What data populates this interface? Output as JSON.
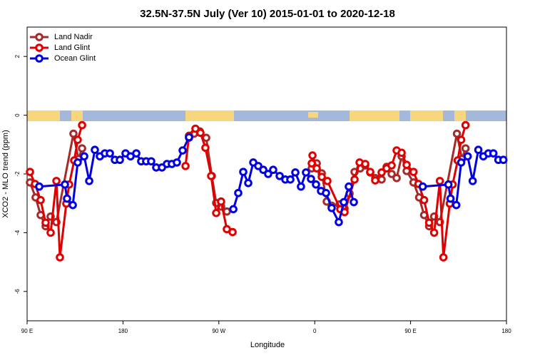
{
  "chart_data": {
    "type": "line",
    "title": "32.5N-37.5N July (Ver 10)   2015-01-01 to 2020-12-18",
    "xlabel": "Longitude",
    "ylabel": "XCO2 - MLO trend (ppm)",
    "xlim": [
      90,
      540
    ],
    "ylim": [
      -7,
      3
    ],
    "xticks": [
      {
        "value": 90,
        "label": "90 E"
      },
      {
        "value": 180,
        "label": "180"
      },
      {
        "value": 270,
        "label": "90 W"
      },
      {
        "value": 360,
        "label": "0"
      },
      {
        "value": 450,
        "label": "90 E"
      },
      {
        "value": 540,
        "label": "180"
      }
    ],
    "yticks": [
      -6,
      -4,
      -2,
      0,
      2
    ],
    "legend": "top-left",
    "series": [
      {
        "name": "Land Nadir",
        "color": "#a52a2a",
        "x": [
          92.7,
          98.0,
          102.7,
          107.4,
          112.1,
          117.5,
          133.5,
          138.2,
          141.6,
          null,
          242.0,
          246.7,
          252.1,
          258.1,
          263.4,
          267.5,
          272.1,
          277.5,
          null,
          357.2,
          361.9,
          366.6,
          371.3,
          375.9,
          383.3,
          388.0,
          392.7,
          397.4,
          402.7,
          407.4,
          412.1,
          416.8,
          422.8,
          427.5,
          432.2,
          436.9,
          441.6,
          446.3,
          452.7,
          458.0,
          462.7,
          467.4,
          472.1,
          477.5,
          493.5,
          498.2,
          501.6
        ],
        "values": [
          -2.29,
          -2.8,
          -3.4,
          -3.78,
          -3.45,
          -3.64,
          -0.63,
          -1.49,
          -1.13,
          null,
          -0.77,
          -0.63,
          -0.55,
          -0.77,
          -2.07,
          -2.99,
          -3.11,
          -3.28,
          null,
          -1.81,
          -1.64,
          -1.98,
          -2.94,
          -3.08,
          -3.04,
          -3.18,
          -2.67,
          -1.93,
          -1.81,
          -1.71,
          -1.95,
          -2.14,
          -2.19,
          -1.76,
          -2.0,
          -2.14,
          -1.4,
          -1.9,
          -2.29,
          -2.8,
          -3.4,
          -3.78,
          -3.45,
          -3.64,
          -0.63,
          -1.49,
          -1.13
        ]
      },
      {
        "name": "Land Glint",
        "color": "#e00000",
        "x": [
          92.7,
          97.4,
          102.7,
          107.4,
          112.1,
          117.5,
          120.8,
          126.8,
          129.5,
          134.2,
          137.5,
          141.6,
          null,
          238.7,
          242.0,
          248.0,
          252.7,
          257.4,
          262.8,
          267.5,
          272.1,
          277.5,
          282.9,
          null,
          357.2,
          357.9,
          361.9,
          366.6,
          371.9,
          384.0,
          388.0,
          397.4,
          402.1,
          407.4,
          412.1,
          416.8,
          422.8,
          427.5,
          432.2,
          436.9,
          441.6,
          446.3,
          452.7,
          457.4,
          462.7,
          467.4,
          472.1,
          477.5,
          480.8,
          486.8,
          489.5,
          494.2,
          497.5,
          501.6
        ],
        "values": [
          -1.93,
          -2.34,
          -2.89,
          -3.66,
          -4.0,
          -2.24,
          -4.84,
          -3.01,
          -2.36,
          -1.54,
          -0.84,
          -0.34,
          null,
          -1.73,
          -0.7,
          -0.46,
          -0.6,
          -1.11,
          -2.07,
          -3.33,
          -2.94,
          -3.88,
          -3.98,
          null,
          -1.64,
          -1.37,
          -1.81,
          -2.1,
          -2.24,
          -3.2,
          -3.3,
          -2.19,
          -1.61,
          -1.66,
          -1.93,
          -2.22,
          -1.95,
          -1.81,
          -1.71,
          -1.2,
          -1.28,
          -1.69,
          -1.93,
          -2.34,
          -2.89,
          -3.66,
          -4.0,
          -2.24,
          -4.84,
          -3.01,
          -2.36,
          -1.54,
          -0.84,
          -0.34
        ]
      },
      {
        "name": "Ocean Glint",
        "color": "#0000e0",
        "x": [
          101.4,
          125.5,
          127.5,
          132.9,
          137.5,
          143.6,
          148.3,
          153.6,
          158.3,
          163.0,
          167.7,
          172.4,
          177.1,
          182.4,
          187.1,
          192.5,
          197.1,
          201.8,
          206.5,
          211.2,
          216.6,
          221.3,
          225.9,
          230.6,
          236.0,
          242.0,
          null,
          283.6,
          288.2,
          292.9,
          297.6,
          302.3,
          307.0,
          311.7,
          316.3,
          321.0,
          327.1,
          332.4,
          337.1,
          341.8,
          347.1,
          351.8,
          356.5,
          361.2,
          365.9,
          370.6,
          375.9,
          382.6,
          387.3,
          392.0,
          396.7,
          null,
          461.4,
          485.5,
          487.5,
          492.9,
          497.5,
          503.6,
          508.3,
          513.6,
          518.3,
          523.0,
          527.7,
          532.4,
          537.1
        ],
        "values": [
          -2.43,
          -2.36,
          -2.84,
          -3.06,
          -1.61,
          -1.4,
          -2.24,
          -1.18,
          -1.4,
          -1.3,
          -1.3,
          -1.52,
          -1.52,
          -1.3,
          -1.4,
          -1.3,
          -1.57,
          -1.57,
          -1.57,
          -1.78,
          -1.78,
          -1.66,
          -1.66,
          -1.61,
          -1.2,
          -0.75,
          null,
          -3.2,
          -2.65,
          -1.93,
          -2.31,
          -1.61,
          -1.73,
          -1.86,
          -2.0,
          -1.86,
          -2.07,
          -2.19,
          -2.19,
          -1.95,
          -2.43,
          -1.95,
          -2.17,
          -2.36,
          -2.58,
          -2.65,
          -3.16,
          -3.64,
          -2.96,
          -2.43,
          -2.96,
          null,
          -2.43,
          -2.36,
          -2.84,
          -3.06,
          -1.61,
          -1.4,
          -2.24,
          -1.18,
          -1.4,
          -1.3,
          -1.3,
          -1.52,
          -1.52
        ]
      }
    ]
  }
}
